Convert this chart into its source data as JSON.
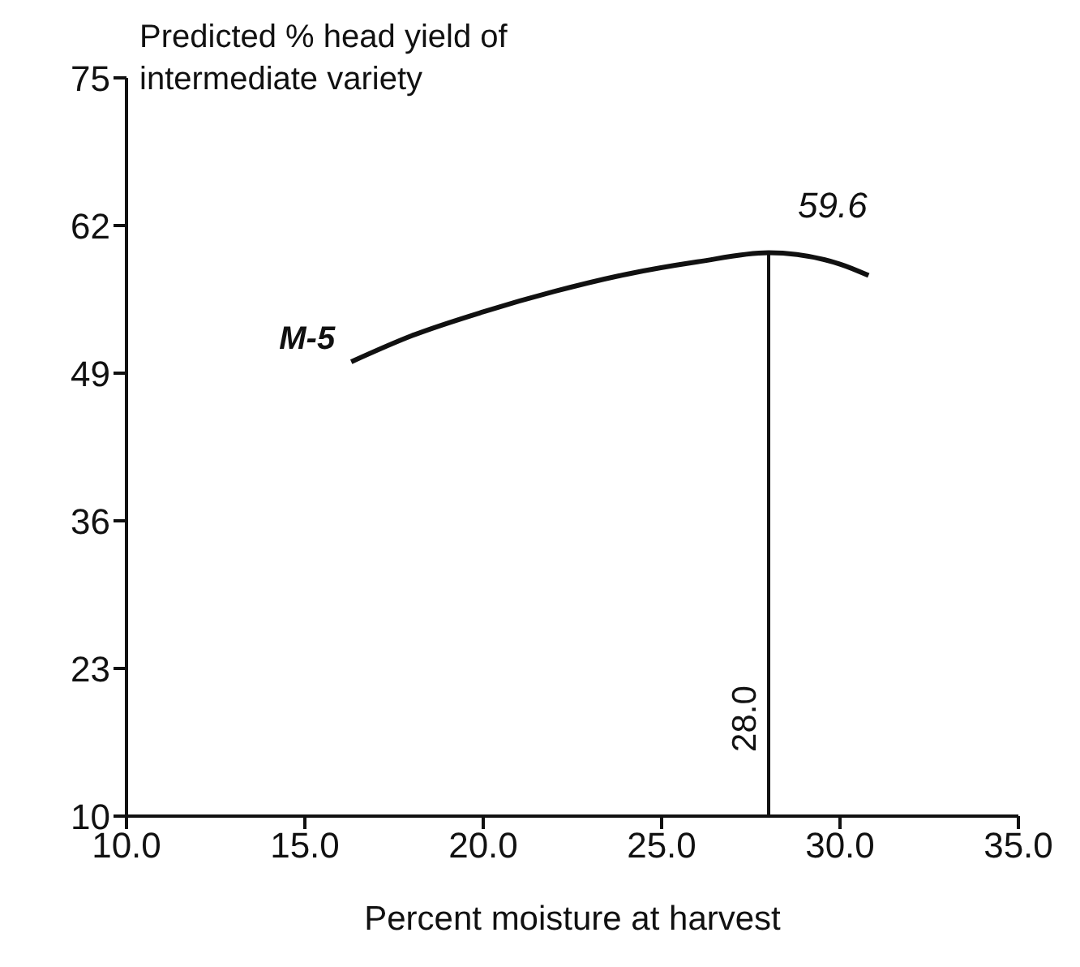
{
  "chart_data": {
    "type": "line",
    "ylabel": "Predicted % head yield of\nintermediate variety",
    "xlabel": "Percent moisture at harvest",
    "x": [
      16.3,
      18,
      20,
      22,
      24,
      26,
      28,
      30,
      30.8
    ],
    "series": [
      {
        "name": "M-5",
        "color": "#111111",
        "values": [
          50.0,
          52.3,
          54.4,
          56.2,
          57.7,
          58.8,
          59.6,
          58.6,
          57.6
        ]
      }
    ],
    "xlim": [
      10,
      35
    ],
    "xticks": [
      {
        "value": 10,
        "label": "10.0"
      },
      {
        "value": 15,
        "label": "15.0"
      },
      {
        "value": 20,
        "label": "20.0"
      },
      {
        "value": 25,
        "label": "25.0"
      },
      {
        "value": 30,
        "label": "30.0"
      },
      {
        "value": 35,
        "label": "35.0"
      }
    ],
    "ylim": [
      10,
      75
    ],
    "yticks": [
      10,
      23,
      36,
      49,
      62,
      75
    ],
    "grid": false,
    "legend": false,
    "marker": "none",
    "line_style": "solid",
    "ref_lines": [
      {
        "axis": "x",
        "value": 28,
        "label": "28.0",
        "color": "#111111"
      }
    ],
    "annotations": [
      {
        "text": "59.6",
        "x": 28,
        "y": 59.6
      }
    ]
  }
}
